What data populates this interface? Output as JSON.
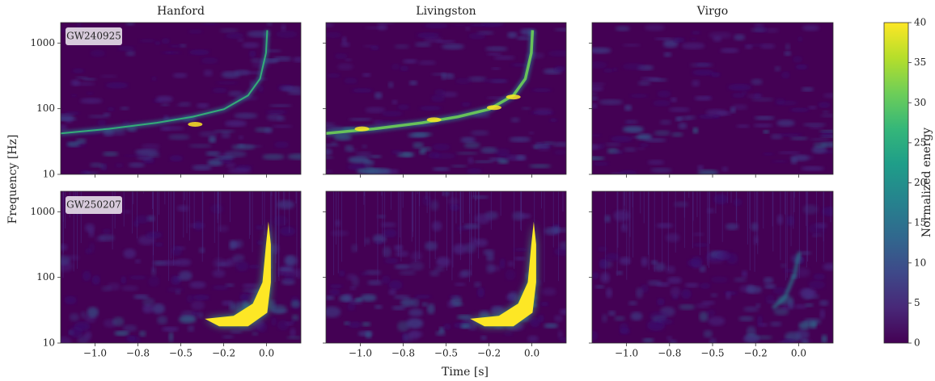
{
  "chart_data": {
    "type": "spectrogram",
    "columns": [
      "Hanford",
      "Livingston",
      "Virgo"
    ],
    "rows": [
      "GW240925",
      "GW250207"
    ],
    "xlabel": "Time [s]",
    "ylabel": "Frequency [Hz]",
    "xlim": [
      -1.2,
      0.2
    ],
    "xticks": [
      {
        "value": -1.0,
        "label": "−1.0"
      },
      {
        "value": -0.75,
        "label": "−0.8"
      },
      {
        "value": -0.5,
        "label": "−0.5"
      },
      {
        "value": -0.25,
        "label": "−0.2"
      },
      {
        "value": 0.0,
        "label": "0.0"
      }
    ],
    "ylim": [
      10,
      2048
    ],
    "yticks": [
      10,
      100,
      1000
    ],
    "log_y": true,
    "colorbar": {
      "label": "Normalized energy",
      "lim": [
        0,
        40
      ],
      "ticks": [
        0,
        5,
        10,
        15,
        20,
        25,
        30,
        35,
        40
      ],
      "colormap": "viridis"
    }
  }
}
